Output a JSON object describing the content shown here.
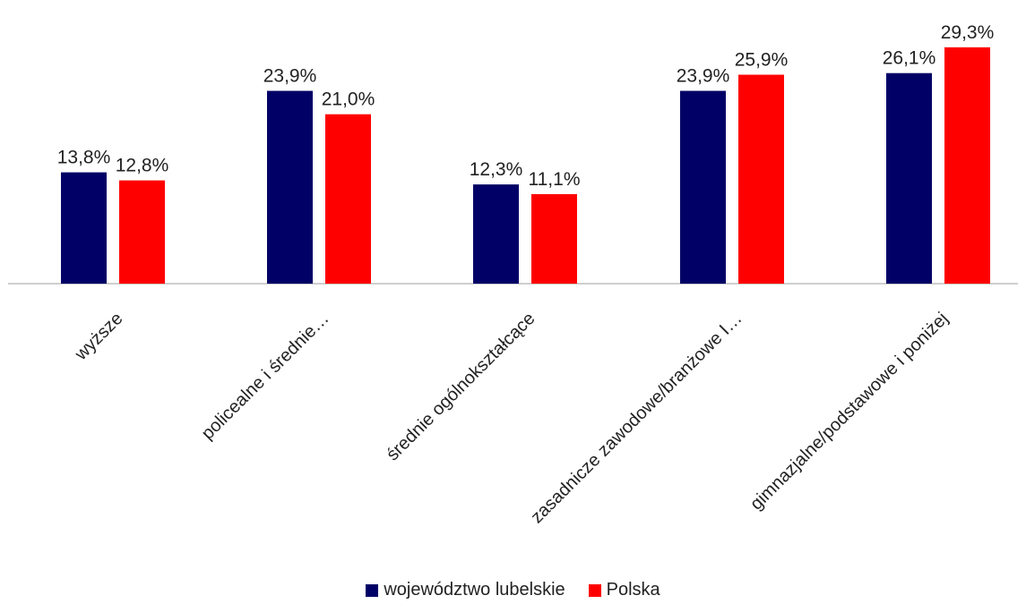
{
  "chart_data": {
    "type": "bar",
    "categories": [
      "wyższe",
      "policealne i średnie…",
      "średnie ogólnokształcące",
      "zasadnicze zawodowe/branżowe I…",
      "gimnazjalne/podstawowe i poniżej"
    ],
    "series": [
      {
        "name": "województwo lubelskie",
        "color": "#000066",
        "values": [
          13.8,
          23.9,
          12.3,
          23.9,
          26.1
        ],
        "labels": [
          "13,8%",
          "23,9%",
          "12,3%",
          "23,9%",
          "26,1%"
        ]
      },
      {
        "name": "Polska",
        "color": "#ff0000",
        "values": [
          12.8,
          21.0,
          11.1,
          25.9,
          29.3
        ],
        "labels": [
          "12,8%",
          "21,0%",
          "11,1%",
          "25,9%",
          "29,3%"
        ]
      }
    ],
    "title": "",
    "xlabel": "",
    "ylabel": "",
    "ylim": [
      0,
      30
    ],
    "grid": false,
    "legend_position": "bottom",
    "axis_color": "#bfbfbf"
  }
}
